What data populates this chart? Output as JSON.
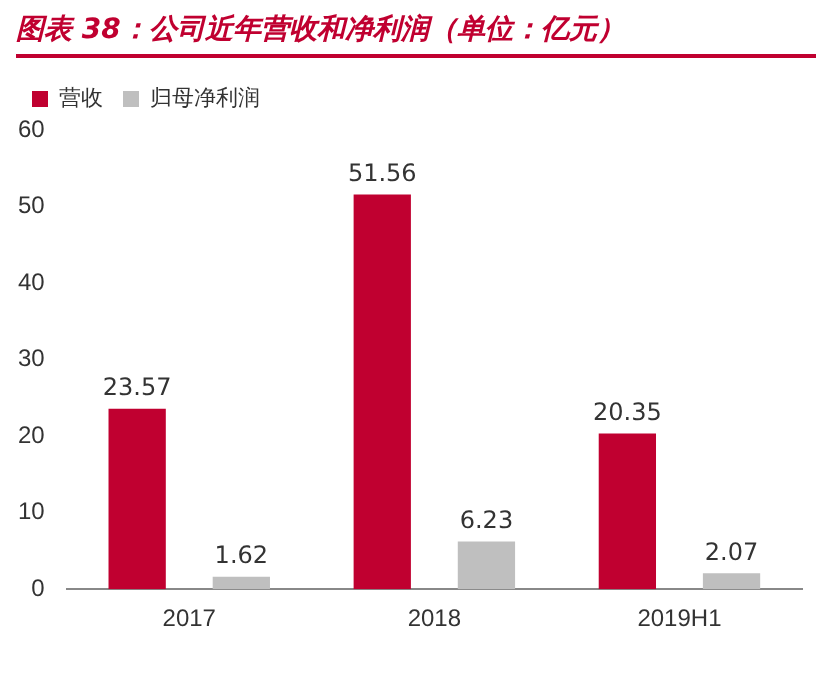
{
  "chart_data": {
    "type": "bar",
    "title": "图表 38：公司近年营收和净利润（单位：亿元）",
    "categories": [
      "2017",
      "2018",
      "2019H1"
    ],
    "series": [
      {
        "name": "营收",
        "color": "#c00030",
        "values": [
          23.57,
          51.56,
          20.35
        ]
      },
      {
        "name": "归母净利润",
        "color": "#bfbfbf",
        "values": [
          1.62,
          6.23,
          2.07
        ]
      }
    ],
    "ylim": [
      0,
      60
    ],
    "yticks": [
      0,
      10,
      20,
      30,
      40,
      50,
      60
    ],
    "grid": false,
    "legend": "top left",
    "data_labels": true
  }
}
